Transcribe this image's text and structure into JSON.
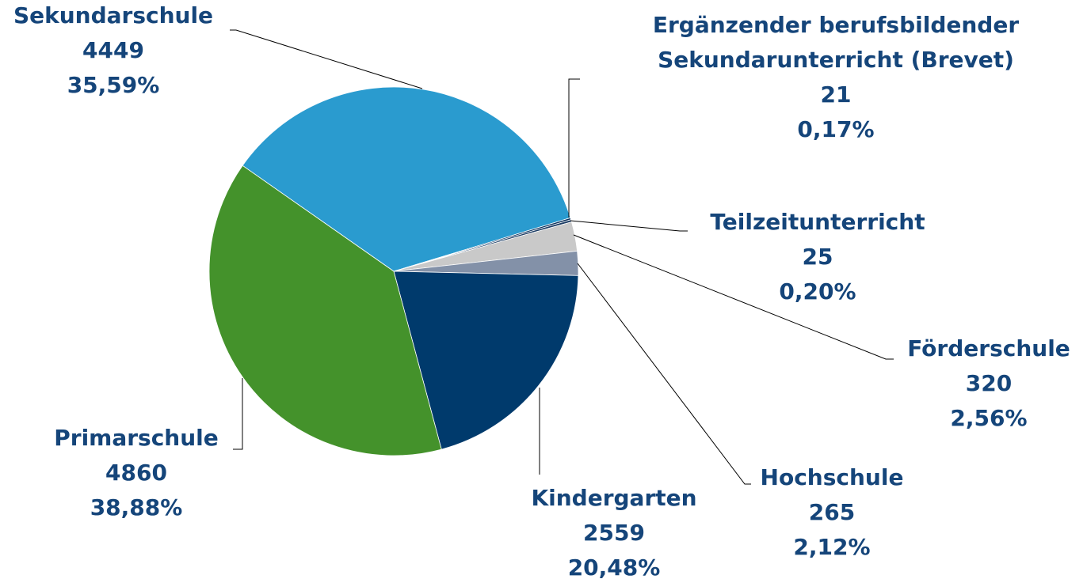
{
  "chart_data": {
    "type": "pie",
    "categories": [
      "Sekundarschule",
      "Ergänzender berufsbildender Sekundarunterricht (Brevet)",
      "Teilzeitunterricht",
      "Förderschule",
      "Hochschule",
      "Kindergarten",
      "Primarschule"
    ],
    "values": [
      4449,
      21,
      25,
      320,
      265,
      2559,
      4860
    ],
    "percentages": [
      35.59,
      0.17,
      0.2,
      2.56,
      2.12,
      20.48,
      38.88
    ],
    "percentage_labels": [
      "35,59%",
      "0,17%",
      "0,20%",
      "2,56%",
      "2,12%",
      "20,48%",
      "38,88%"
    ],
    "colors": [
      "#2a9bcf",
      "#0b2f5a",
      "#1f3f66",
      "#c9c9c9",
      "#8391a8",
      "#003a6c",
      "#44922b"
    ]
  }
}
